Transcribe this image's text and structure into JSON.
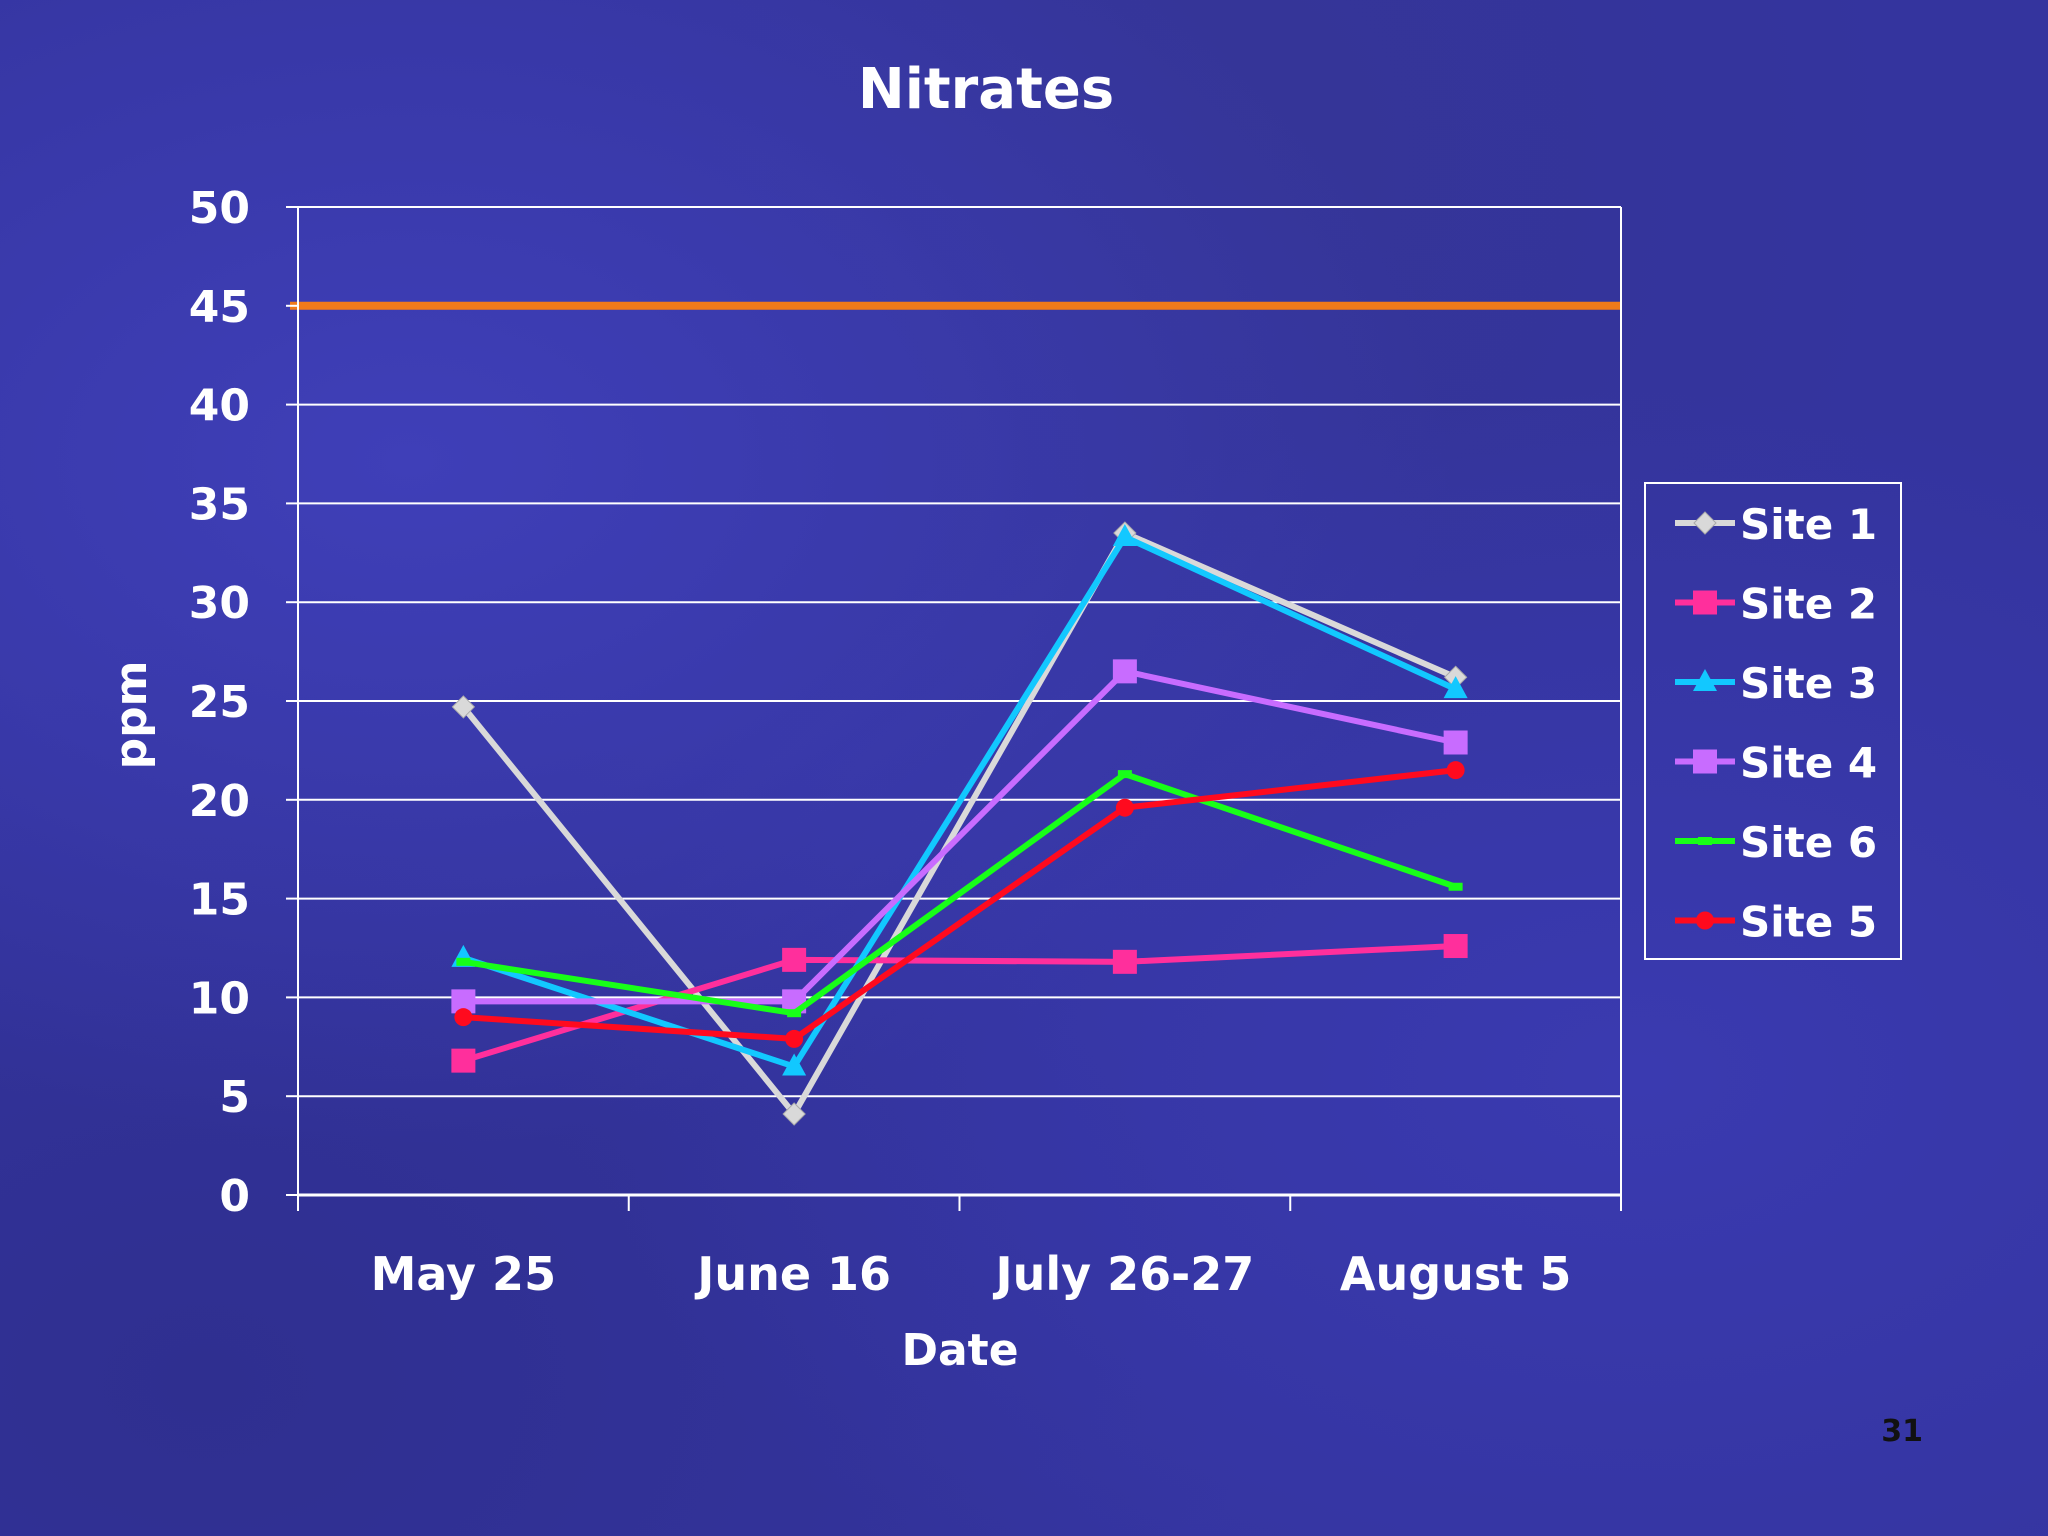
{
  "slide": {
    "page_number": "31"
  },
  "colors": {
    "background": "#34349e",
    "grid": "#ffffff",
    "text": "#ffffff",
    "reference_line": "#f07a1a"
  },
  "chart_data": {
    "type": "line",
    "title": "Nitrates",
    "xlabel": "Date",
    "ylabel": "ppm",
    "categories": [
      "May 25",
      "June 16",
      "July 26-27",
      "August 5"
    ],
    "ylim": [
      0,
      50
    ],
    "yticks": [
      0,
      5,
      10,
      15,
      20,
      25,
      30,
      35,
      40,
      45,
      50
    ],
    "grid": true,
    "legend_position": "right",
    "reference_line": {
      "value": 45,
      "color": "#f07a1a"
    },
    "series": [
      {
        "name": "Site 1",
        "color": "#d9d9d9",
        "marker": "diamond",
        "values": [
          24.7,
          4.1,
          33.5,
          26.2
        ]
      },
      {
        "name": "Site 2",
        "color": "#ff2f9c",
        "marker": "square",
        "values": [
          6.8,
          11.9,
          11.8,
          12.6
        ]
      },
      {
        "name": "Site 3",
        "color": "#12c8ff",
        "marker": "triangle",
        "values": [
          12.0,
          6.5,
          33.3,
          25.6
        ]
      },
      {
        "name": "Site 4",
        "color": "#c86cff",
        "marker": "square",
        "values": [
          9.8,
          9.8,
          26.5,
          22.9
        ]
      },
      {
        "name": "Site 6",
        "color": "#18ff18",
        "marker": "dash",
        "values": [
          11.8,
          9.2,
          21.3,
          15.6
        ]
      },
      {
        "name": "Site 5",
        "color": "#ff0a1e",
        "marker": "circle",
        "values": [
          9.0,
          7.9,
          19.6,
          21.5
        ]
      }
    ]
  }
}
